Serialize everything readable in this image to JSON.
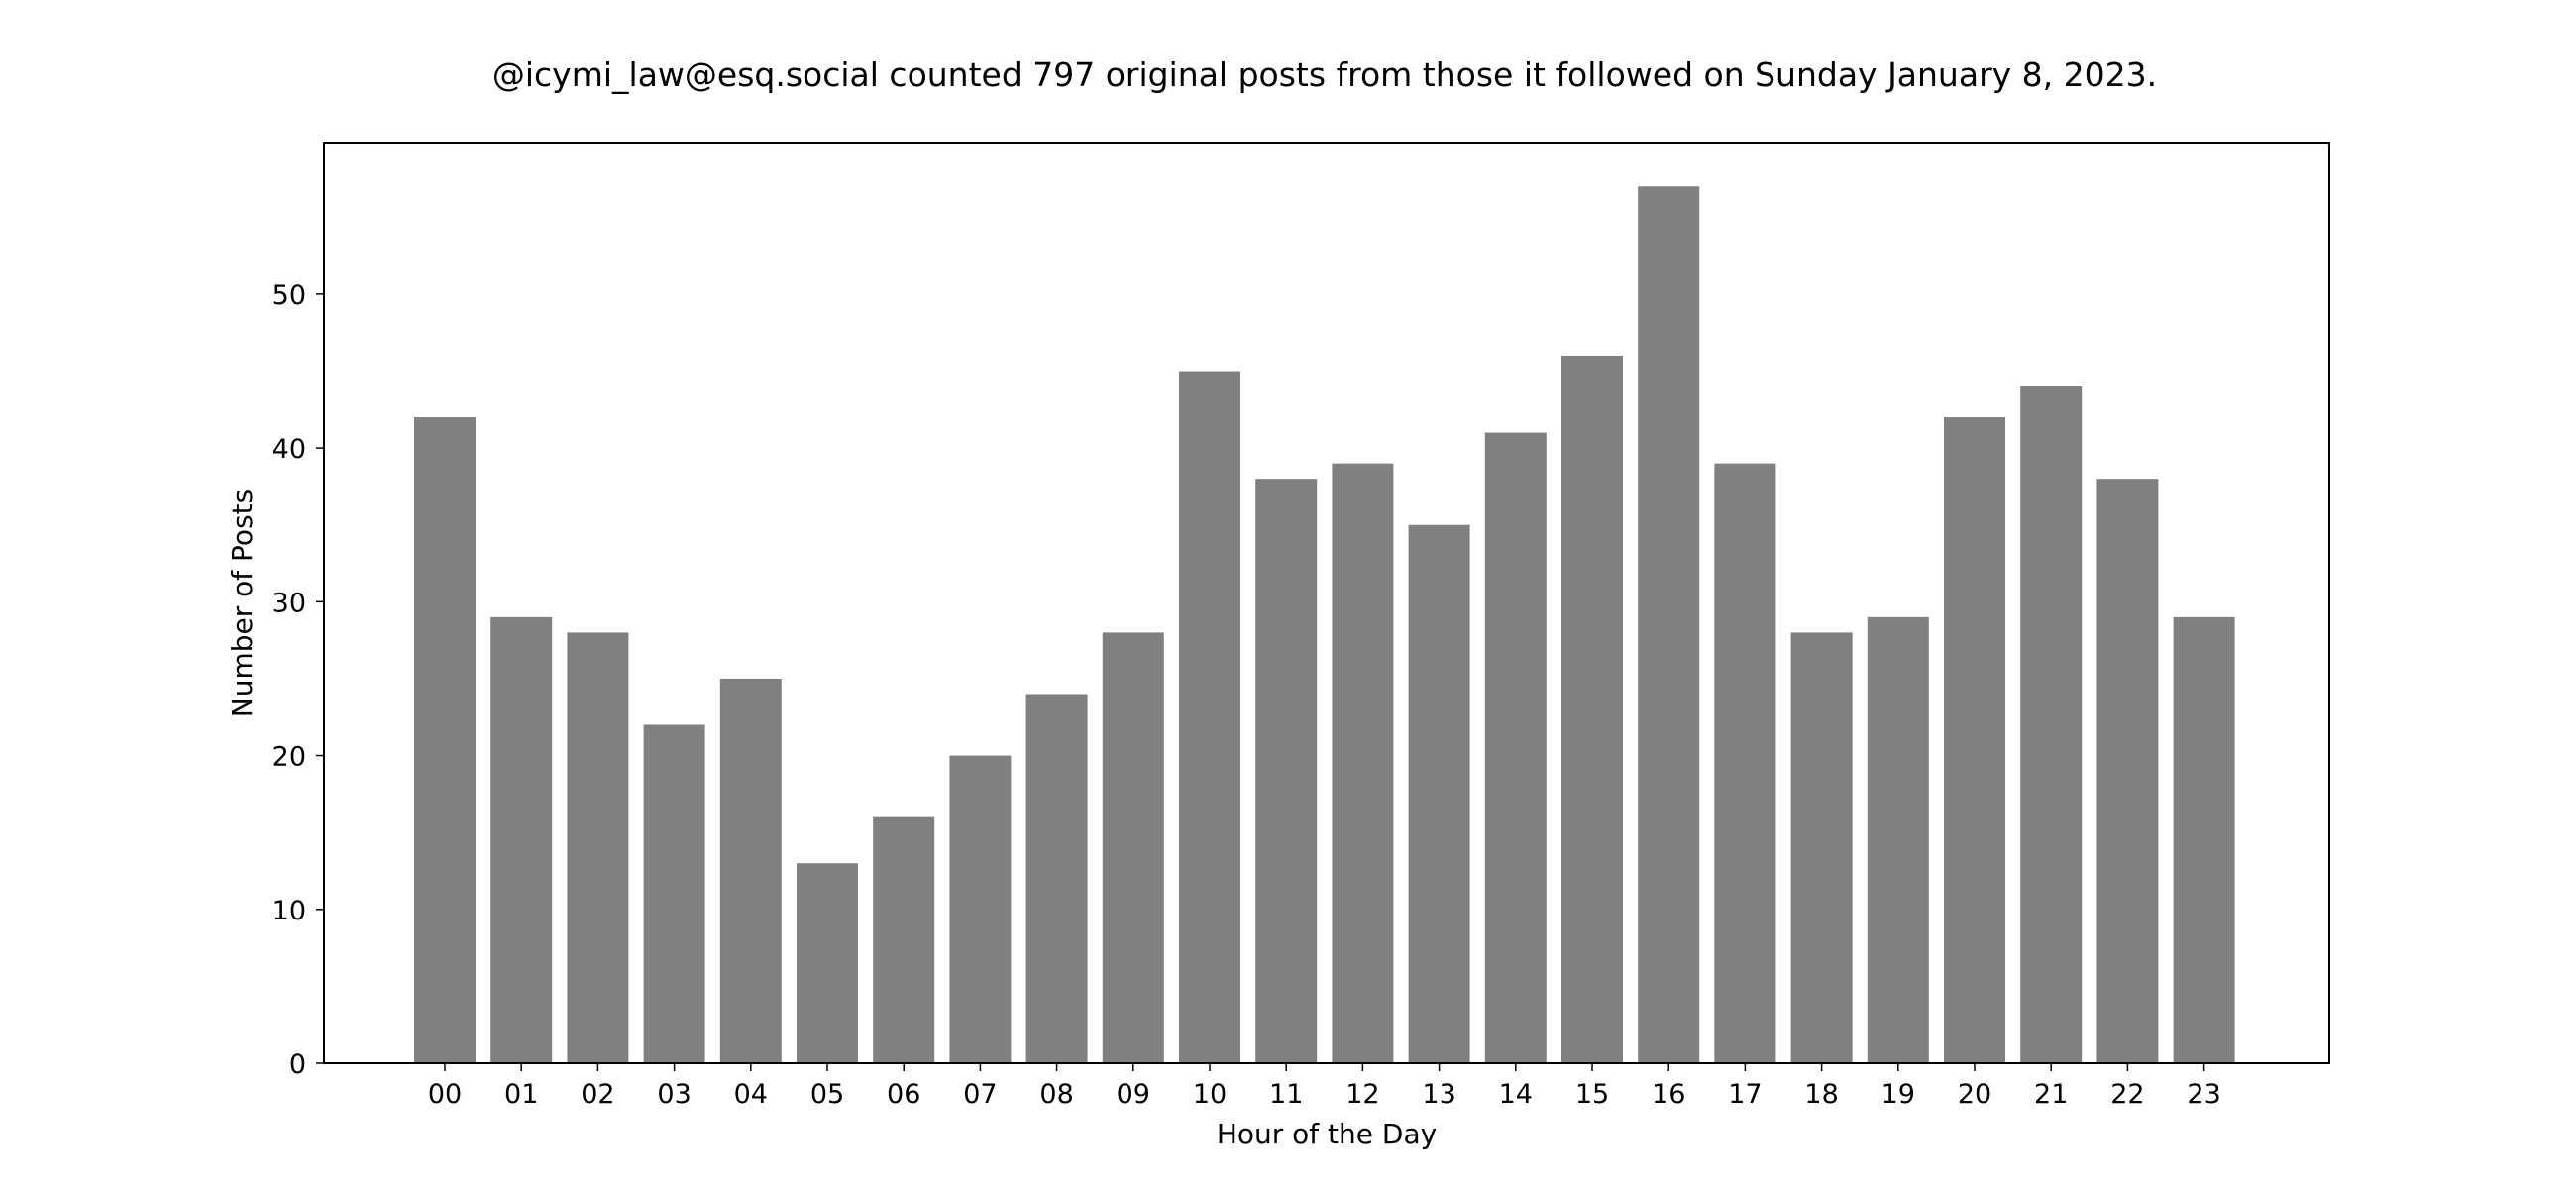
{
  "chart_data": {
    "type": "bar",
    "title": "@icymi_law@esq.social counted 797 original posts from those it followed on Sunday January 8, 2023.",
    "xlabel": "Hour of the Day",
    "ylabel": "Number of Posts",
    "categories": [
      "00",
      "01",
      "02",
      "03",
      "04",
      "05",
      "06",
      "07",
      "08",
      "09",
      "10",
      "11",
      "12",
      "13",
      "14",
      "15",
      "16",
      "17",
      "18",
      "19",
      "20",
      "21",
      "22",
      "23"
    ],
    "values": [
      42,
      29,
      28,
      22,
      25,
      13,
      16,
      20,
      24,
      28,
      45,
      38,
      39,
      35,
      41,
      46,
      57,
      39,
      28,
      29,
      42,
      44,
      38,
      29
    ],
    "ylim": [
      0,
      59.85
    ],
    "yticks": [
      0,
      10,
      20,
      30,
      40,
      50
    ],
    "bar_color": "#808080",
    "grid": false,
    "legend": "none"
  }
}
